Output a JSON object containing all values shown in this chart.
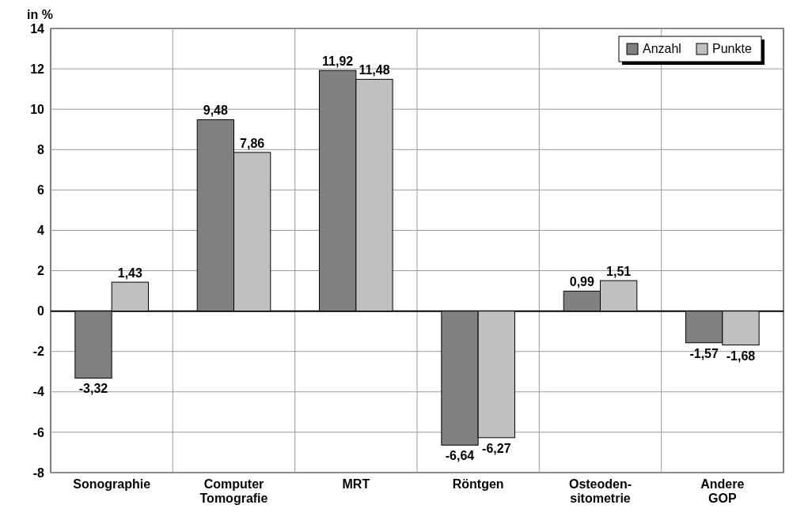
{
  "chart_data": {
    "type": "bar",
    "ylabel": "in %",
    "categories": [
      "Sonographie",
      "Computer\nTomografie",
      "MRT",
      "Röntgen",
      "Osteoden-\nsitometrie",
      "Andere\nGOP"
    ],
    "series": [
      {
        "name": "Anzahl",
        "color": "#808080",
        "values": [
          -3.32,
          9.48,
          11.92,
          -6.64,
          0.99,
          -1.57
        ],
        "value_labels": [
          "-3,32",
          "9,48",
          "11,92",
          "-6,64",
          "0,99",
          "-1,57"
        ]
      },
      {
        "name": "Punkte",
        "color": "#c0c0c0",
        "values": [
          1.43,
          7.86,
          11.48,
          -6.27,
          1.51,
          -1.68
        ],
        "value_labels": [
          "1,43",
          "7,86",
          "11,48",
          "-6,27",
          "1,51",
          "-1,68"
        ]
      }
    ],
    "ylim": [
      -8,
      14
    ],
    "yticks": [
      -8,
      -6,
      -4,
      -2,
      0,
      2,
      4,
      6,
      8,
      10,
      12,
      14
    ],
    "grid": true,
    "legend": "top right"
  }
}
